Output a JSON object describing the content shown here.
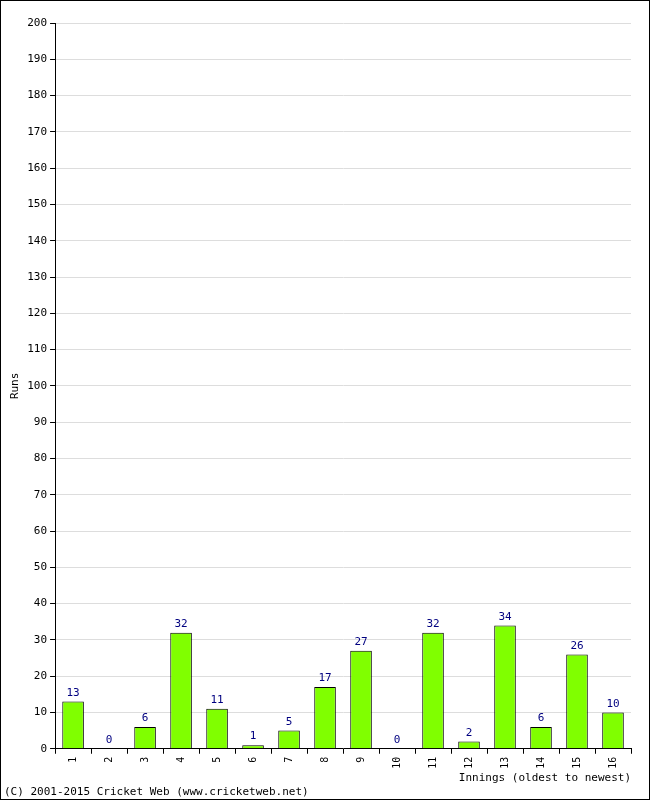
{
  "chart_data": {
    "type": "bar",
    "x_label": "Innings (oldest to newest)",
    "y_label": "Runs",
    "annotations": [
      "(C) 2001-2015 Cricket Web (www.cricketweb.net)"
    ],
    "categories": [
      "1",
      "2",
      "3",
      "4",
      "5",
      "6",
      "7",
      "8",
      "9",
      "10",
      "11",
      "12",
      "13",
      "14",
      "15",
      "16"
    ],
    "values": [
      13,
      0,
      6,
      32,
      11,
      1,
      5,
      17,
      27,
      0,
      32,
      2,
      34,
      6,
      26,
      10
    ],
    "color": "#80ff00",
    "ylim": [
      0,
      200
    ],
    "yticks": [
      0,
      10,
      20,
      30,
      40,
      50,
      60,
      70,
      80,
      90,
      100,
      110,
      120,
      130,
      140,
      150,
      160,
      170,
      180,
      190,
      200
    ],
    "grid": true,
    "data_labels": true
  }
}
